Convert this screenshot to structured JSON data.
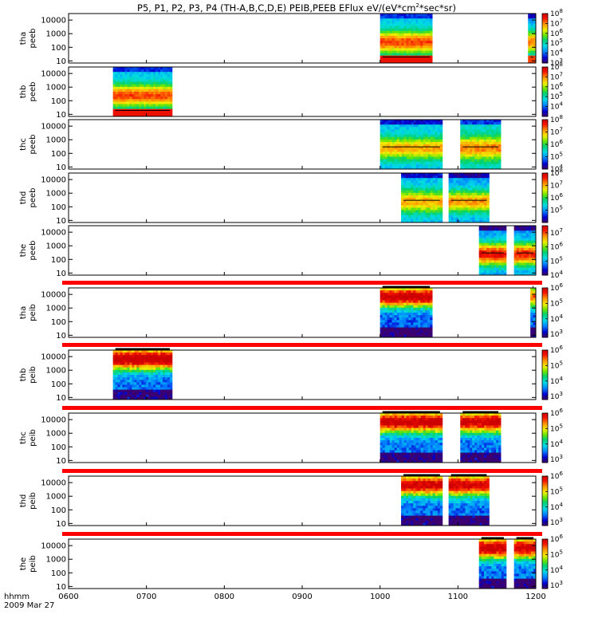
{
  "title": "P5, P1, P2, P3, P4 (TH-A,B,C,D,E) PEIB,PEEB EFlux eV/(eV*cm²*sec*sr)",
  "chart_data": {
    "type": "heatmap",
    "x_tick_labels": [
      "0600",
      "0700",
      "0800",
      "0900",
      "1000",
      "1100",
      "1200"
    ],
    "x_range_hours": [
      6,
      12
    ],
    "x_label": "hhmm",
    "date_label": "2009 Mar 27",
    "y_scale": "log",
    "y_tick_labels": [
      "10",
      "100",
      "1000",
      "10000"
    ],
    "panels": [
      {
        "probe": "tha",
        "product": "peeb",
        "yrange": [
          7,
          30000
        ],
        "cbar_ticks": [
          3,
          4,
          5,
          6,
          7,
          8
        ],
        "cbar_range": [
          3,
          8
        ],
        "segments": [
          {
            "start": 10.0,
            "end": 10.67,
            "peak": 7.3,
            "low": 4.2,
            "hot": true
          },
          {
            "start": 11.9,
            "end": 12.0,
            "peak": 7.0,
            "low": 4.0,
            "hot": true
          }
        ]
      },
      {
        "probe": "thb",
        "product": "peeb",
        "yrange": [
          7,
          30000
        ],
        "cbar_ticks": [
          4,
          5,
          6,
          7,
          8
        ],
        "cbar_range": [
          3,
          8
        ],
        "segments": [
          {
            "start": 6.57,
            "end": 7.33,
            "peak": 7.3,
            "low": 4.2,
            "hot": true
          }
        ]
      },
      {
        "probe": "thc",
        "product": "peeb",
        "yrange": [
          7,
          30000
        ],
        "cbar_ticks": [
          4,
          5,
          6,
          7,
          8
        ],
        "cbar_range": [
          4,
          8
        ],
        "segments": [
          {
            "start": 10.0,
            "end": 10.8,
            "peak": 7.0,
            "low": 5.0,
            "hot": false
          },
          {
            "start": 11.03,
            "end": 11.55,
            "peak": 7.2,
            "low": 5.2,
            "hot": false
          }
        ]
      },
      {
        "probe": "thd",
        "product": "peeb",
        "yrange": [
          7,
          30000
        ],
        "cbar_ticks": [
          5,
          6,
          7,
          8
        ],
        "cbar_range": [
          4,
          8
        ],
        "segments": [
          {
            "start": 10.27,
            "end": 10.8,
            "peak": 7.0,
            "low": 5.0,
            "hot": false
          },
          {
            "start": 10.88,
            "end": 11.4,
            "peak": 7.1,
            "low": 4.8,
            "hot": false
          }
        ]
      },
      {
        "probe": "the",
        "product": "peeb",
        "yrange": [
          7,
          30000
        ],
        "cbar_ticks": [
          4,
          5,
          6,
          7
        ],
        "cbar_range": [
          4,
          7.5
        ],
        "segments": [
          {
            "start": 11.27,
            "end": 11.62,
            "peak": 7.3,
            "low": 4.6,
            "hot": false
          },
          {
            "start": 11.72,
            "end": 12.0,
            "peak": 7.2,
            "low": 4.6,
            "hot": false
          }
        ]
      },
      {
        "probe": "tha",
        "product": "peib",
        "yrange": [
          7,
          30000
        ],
        "cbar_ticks": [
          3,
          4,
          5,
          6
        ],
        "cbar_range": [
          2.8,
          6
        ],
        "segments": [
          {
            "start": 10.0,
            "end": 10.67,
            "peak": 6.1,
            "low": 2.9,
            "hot": false
          },
          {
            "start": 11.93,
            "end": 12.0,
            "peak": 5.5,
            "low": 3.0,
            "hot": false
          }
        ]
      },
      {
        "probe": "thb",
        "product": "peib",
        "yrange": [
          7,
          30000
        ],
        "cbar_ticks": [
          3,
          4,
          5,
          6
        ],
        "cbar_range": [
          2.8,
          6
        ],
        "segments": [
          {
            "start": 6.57,
            "end": 7.33,
            "peak": 6.2,
            "low": 3.0,
            "hot": false
          }
        ]
      },
      {
        "probe": "thc",
        "product": "peib",
        "yrange": [
          7,
          30000
        ],
        "cbar_ticks": [
          3,
          4,
          5,
          6
        ],
        "cbar_range": [
          2.8,
          6
        ],
        "segments": [
          {
            "start": 10.0,
            "end": 10.8,
            "peak": 6.1,
            "low": 3.0,
            "hot": false
          },
          {
            "start": 11.03,
            "end": 11.55,
            "peak": 6.0,
            "low": 3.0,
            "hot": false
          }
        ]
      },
      {
        "probe": "thd",
        "product": "peib",
        "yrange": [
          7,
          30000
        ],
        "cbar_ticks": [
          3,
          4,
          5,
          6
        ],
        "cbar_range": [
          2.8,
          6
        ],
        "segments": [
          {
            "start": 10.27,
            "end": 10.8,
            "peak": 6.0,
            "low": 3.0,
            "hot": false
          },
          {
            "start": 10.88,
            "end": 11.4,
            "peak": 6.0,
            "low": 3.0,
            "hot": false
          }
        ]
      },
      {
        "probe": "the",
        "product": "peib",
        "yrange": [
          7,
          30000
        ],
        "cbar_ticks": [
          3,
          4,
          5,
          6
        ],
        "cbar_range": [
          2.8,
          6
        ],
        "segments": [
          {
            "start": 11.27,
            "end": 11.62,
            "peak": 6.1,
            "low": 3.0,
            "hot": false
          },
          {
            "start": 11.72,
            "end": 12.0,
            "peak": 6.0,
            "low": 3.0,
            "hot": false
          }
        ]
      }
    ]
  }
}
